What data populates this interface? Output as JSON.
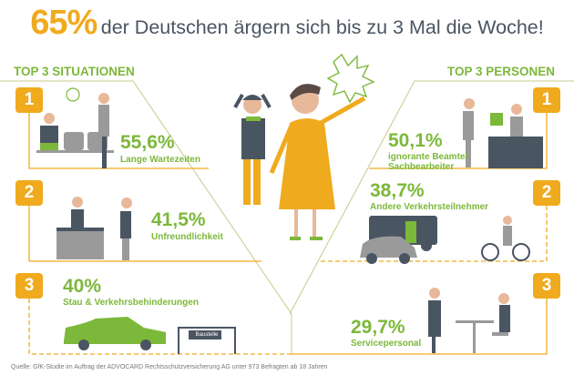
{
  "title": {
    "highlight": "65%",
    "text": "der Deutschen ärgern sich bis zu 3 Mal die Woche!"
  },
  "colors": {
    "accent_orange": "#f0aa1e",
    "accent_green": "#7cb83a",
    "dark": "#4a5562",
    "gray": "#9a9a9a"
  },
  "situations": {
    "heading": "TOP 3 SITUATIONEN",
    "items": [
      {
        "rank": "1",
        "percent": "55,6%",
        "label": "Lange Wartezeiten"
      },
      {
        "rank": "2",
        "percent": "41,5%",
        "label": "Unfreundlichkeit"
      },
      {
        "rank": "3",
        "percent": "40%",
        "label": "Stau & Verkehrsbehinderungen",
        "sign": "Baustelle"
      }
    ]
  },
  "persons": {
    "heading": "TOP 3 PERSONEN",
    "items": [
      {
        "rank": "1",
        "percent": "50,1%",
        "label_line1": "ignorante Beamte/",
        "label_line2": "Sachbearbeiter"
      },
      {
        "rank": "2",
        "percent": "38,7%",
        "label": "Andere Verkehrsteilnehmer"
      },
      {
        "rank": "3",
        "percent": "29,7%",
        "label": "Servicepersonal"
      }
    ]
  },
  "footer": "Quelle: GfK-Studie im Auftrag der ADVOCARD Rechtsschutzversicherung AG unter 973 Befragten ab 18 Jahren"
}
